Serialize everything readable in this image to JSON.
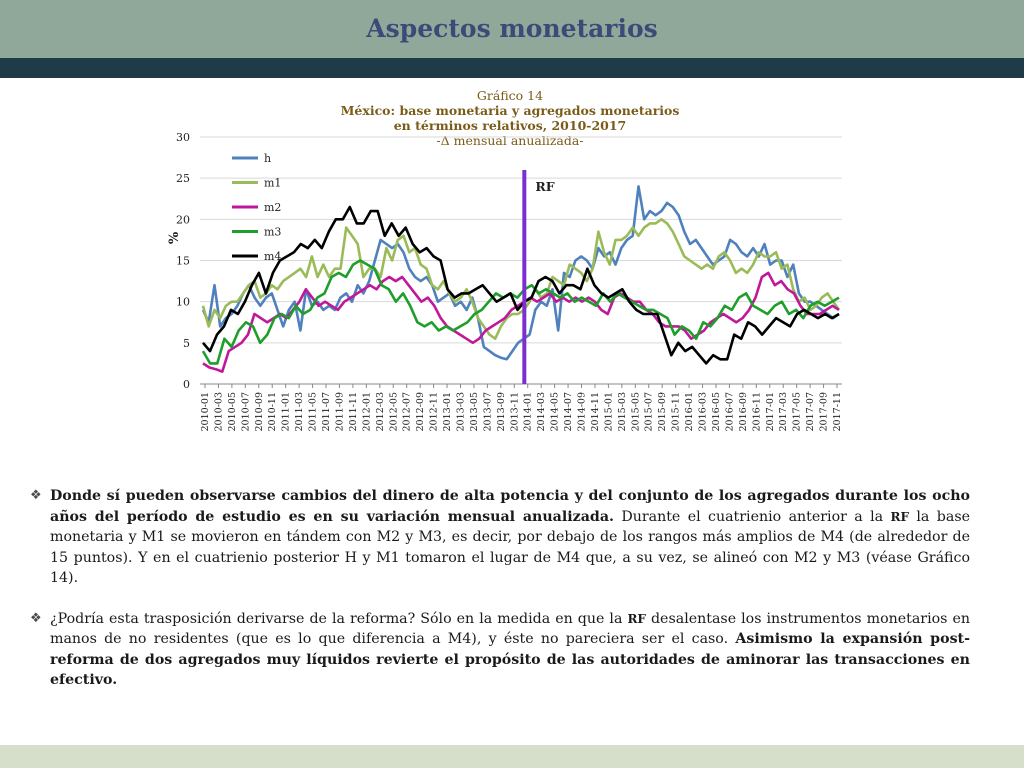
{
  "slide": {
    "title": "Aspectos monetarios"
  },
  "chart_header": {
    "line1": "Gráfico 14",
    "line2": "México: base monetaria y agregados monetarios",
    "line3": "en términos relativos, 2010-2017",
    "line4": "-Δ mensual anualizada-"
  },
  "chart_data": {
    "type": "line",
    "ylabel": "%",
    "ylim": [
      0,
      30
    ],
    "y_ticks": [
      "0",
      "5",
      "10",
      "15",
      "20",
      "25",
      "30"
    ],
    "x_tick_labels": [
      "2010-01",
      "2010-03",
      "2010-05",
      "2010-07",
      "2010-09",
      "2010-11",
      "2011-01",
      "2011-03",
      "2011-05",
      "2011-07",
      "2011-09",
      "2011-11",
      "2012-01",
      "2012-03",
      "2012-05",
      "2012-07",
      "2012-09",
      "2012-11",
      "2013-01",
      "2013-03",
      "2013-05",
      "2013-07",
      "2013-09",
      "2013-11",
      "2014-01",
      "2014-03",
      "2014-05",
      "2014-07",
      "2014-09",
      "2014-11",
      "2015-01",
      "2015-03",
      "2015-05",
      "2015-07",
      "2015-09",
      "2015-11",
      "2016-01",
      "2016-03",
      "2016-05",
      "2016-07",
      "2016-09",
      "2016-11",
      "2017-01",
      "2017-03",
      "2017-05",
      "2017-07",
      "2017-09",
      "2017-11"
    ],
    "annotation": "RF",
    "annotation_index": 48,
    "colors": {
      "h": "#4f81bd",
      "m1": "#9bbb59",
      "m2": "#c0189a",
      "m3": "#1e9e2a",
      "m4": "#000000",
      "rf": "#7b2fd0"
    },
    "series": [
      {
        "name": "h",
        "values": [
          9.0,
          7.5,
          12.0,
          7.0,
          8.0,
          8.5,
          9.5,
          11.0,
          12.0,
          10.5,
          9.5,
          10.5,
          11.0,
          9.0,
          7.0,
          9.0,
          10.0,
          6.5,
          11.5,
          9.5,
          10.0,
          9.0,
          9.5,
          9.0,
          10.5,
          11.0,
          10.0,
          12.0,
          11.0,
          12.5,
          15.0,
          17.5,
          17.0,
          16.5,
          17.0,
          16.0,
          14.0,
          13.0,
          12.5,
          13.0,
          12.0,
          10.0,
          10.5,
          11.0,
          9.5,
          10.0,
          9.0,
          10.5,
          8.0,
          4.5,
          4.0,
          3.5,
          3.2,
          3.0,
          4.0,
          5.0,
          5.5,
          6.0,
          9.0,
          10.0,
          9.5,
          11.5,
          6.5,
          13.5,
          13.0,
          15.0,
          15.5,
          15.0,
          14.0,
          16.5,
          15.5,
          16.0,
          14.5,
          16.5,
          17.5,
          18.0,
          24.0,
          20.0,
          21.0,
          20.5,
          21.0,
          22.0,
          21.5,
          20.5,
          18.5,
          17.0,
          17.5,
          16.5,
          15.5,
          14.5,
          15.0,
          15.5,
          17.5,
          17.0,
          16.0,
          15.5,
          16.5,
          15.5,
          17.0,
          14.5,
          15.0,
          15.0,
          13.0,
          14.5,
          11.0,
          10.0,
          10.0,
          9.5,
          9.0,
          8.5,
          8.0,
          8.5
        ]
      },
      {
        "name": "m1",
        "values": [
          9.5,
          7.0,
          9.0,
          8.0,
          9.5,
          10.0,
          10.0,
          11.0,
          12.0,
          12.5,
          10.5,
          11.0,
          12.0,
          11.5,
          12.5,
          13.0,
          13.5,
          14.0,
          13.0,
          15.5,
          13.0,
          14.5,
          13.0,
          14.0,
          14.0,
          19.0,
          18.0,
          17.0,
          13.0,
          14.0,
          14.0,
          13.0,
          16.5,
          15.0,
          17.5,
          18.0,
          16.0,
          16.5,
          14.5,
          14.0,
          12.0,
          11.5,
          12.5,
          11.0,
          10.0,
          10.5,
          11.5,
          10.0,
          8.0,
          7.0,
          6.0,
          5.5,
          7.0,
          8.0,
          8.5,
          8.5,
          9.0,
          10.0,
          11.5,
          10.5,
          11.0,
          13.0,
          12.5,
          12.0,
          14.5,
          14.0,
          13.5,
          12.5,
          14.0,
          18.5,
          16.0,
          14.5,
          17.5,
          17.5,
          18.0,
          19.0,
          18.0,
          19.0,
          19.5,
          19.5,
          20.0,
          19.5,
          18.5,
          17.0,
          15.5,
          15.0,
          14.5,
          14.0,
          14.5,
          14.0,
          15.5,
          16.0,
          15.0,
          13.5,
          14.0,
          13.5,
          14.5,
          16.0,
          15.5,
          15.5,
          16.0,
          14.0,
          14.5,
          11.5,
          10.0,
          10.5,
          9.0,
          9.5,
          10.5,
          11.0,
          10.0,
          9.0
        ]
      },
      {
        "name": "m2",
        "values": [
          2.5,
          2.0,
          1.8,
          1.5,
          4.0,
          4.5,
          5.0,
          6.0,
          8.5,
          8.0,
          7.5,
          8.0,
          8.5,
          8.0,
          9.0,
          10.0,
          11.5,
          10.5,
          9.5,
          10.0,
          9.5,
          9.0,
          10.0,
          10.5,
          11.0,
          11.5,
          12.0,
          11.5,
          12.5,
          13.0,
          12.5,
          13.0,
          12.0,
          11.0,
          10.0,
          10.5,
          9.5,
          8.0,
          7.0,
          6.5,
          6.0,
          5.5,
          5.0,
          5.5,
          6.5,
          7.0,
          7.5,
          8.0,
          9.0,
          9.5,
          10.0,
          10.5,
          10.0,
          10.5,
          11.0,
          10.0,
          10.5,
          10.0,
          10.5,
          10.0,
          10.5,
          10.0,
          9.0,
          8.5,
          10.5,
          11.0,
          10.5,
          10.0,
          10.0,
          9.0,
          8.5,
          7.5,
          7.0,
          7.0,
          7.0,
          6.5,
          5.5,
          6.0,
          6.5,
          7.5,
          8.0,
          8.5,
          8.0,
          7.5,
          8.0,
          9.0,
          10.5,
          13.0,
          13.5,
          12.0,
          12.5,
          11.5,
          11.0,
          9.5,
          8.5,
          8.5,
          8.5,
          9.0,
          9.5,
          9.0
        ]
      },
      {
        "name": "m3",
        "values": [
          4.0,
          2.5,
          2.5,
          5.5,
          4.5,
          6.5,
          7.5,
          7.0,
          5.0,
          6.0,
          8.0,
          8.5,
          8.0,
          9.5,
          8.5,
          9.0,
          10.5,
          11.0,
          13.0,
          13.5,
          13.0,
          14.5,
          15.0,
          14.5,
          14.0,
          12.0,
          11.5,
          10.0,
          11.0,
          9.5,
          7.5,
          7.0,
          7.5,
          6.5,
          7.0,
          6.5,
          7.0,
          7.5,
          8.5,
          9.0,
          10.0,
          11.0,
          10.5,
          11.0,
          10.5,
          11.5,
          12.0,
          11.0,
          11.5,
          11.0,
          10.5,
          11.0,
          10.0,
          10.5,
          10.0,
          9.5,
          11.0,
          10.0,
          11.0,
          10.5,
          10.0,
          9.5,
          9.0,
          9.0,
          8.5,
          8.0,
          6.0,
          7.0,
          6.5,
          5.5,
          7.5,
          7.0,
          8.0,
          9.5,
          9.0,
          10.5,
          11.0,
          9.5,
          9.0,
          8.5,
          9.5,
          10.0,
          8.5,
          9.0,
          8.0,
          9.5,
          10.0,
          9.5,
          10.0,
          10.5
        ]
      },
      {
        "name": "m4",
        "values": [
          5.0,
          4.0,
          6.0,
          7.0,
          9.0,
          8.5,
          10.0,
          12.0,
          13.5,
          11.0,
          13.5,
          15.0,
          15.5,
          16.0,
          17.0,
          16.5,
          17.5,
          16.5,
          18.5,
          20.0,
          20.0,
          21.5,
          19.5,
          19.5,
          21.0,
          21.0,
          18.0,
          19.5,
          18.0,
          19.0,
          17.0,
          16.0,
          16.5,
          15.5,
          15.0,
          11.5,
          10.5,
          11.0,
          11.0,
          11.5,
          12.0,
          11.0,
          10.0,
          10.5,
          11.0,
          9.0,
          10.0,
          10.5,
          12.5,
          13.0,
          12.5,
          11.0,
          12.0,
          12.0,
          11.5,
          14.0,
          12.0,
          11.0,
          10.5,
          11.0,
          11.5,
          10.0,
          9.0,
          8.5,
          8.5,
          8.5,
          6.0,
          3.5,
          5.0,
          4.0,
          4.5,
          3.5,
          2.5,
          3.5,
          3.0,
          3.0,
          6.0,
          5.5,
          7.5,
          7.0,
          6.0,
          7.0,
          8.0,
          7.5,
          7.0,
          8.5,
          9.0,
          8.5,
          8.0,
          8.5,
          8.0,
          8.5
        ]
      }
    ],
    "legend": [
      "h",
      "m1",
      "m2",
      "m3",
      "m4"
    ],
    "legend_position": "top-left"
  },
  "text": {
    "p1_bold": "Donde sí pueden observarse cambios del dinero de alta potencia y del conjunto de los agregados durante los ocho años del período de estudio es en su variación mensual anualizada.",
    "p1_a": " Durante el cuatrienio anterior a la ",
    "p1_rf": "RF",
    "p1_b": " la base monetaria y M1 se movieron en tándem con M2 y M3, es decir, por debajo de los rangos más amplios de M4 (de alrededor de 15 puntos). Y en el cuatrienio posterior H y M1 tomaron el lugar de M4 que, a su vez, se alineó con M2 y M3 (véase Gráfico 14).",
    "p2_a": "¿Podría esta trasposición derivarse de la reforma? Sólo en la medida en que la ",
    "p2_rf": "RF",
    "p2_b": " desalentase los instrumentos monetarios en manos de no residentes (que es lo que diferencia a M4), y éste no pareciera ser el caso. ",
    "p2_bold": "Asimismo la expansión post-reforma de dos agregados muy líquidos revierte el propósito de las autoridades de aminorar las transacciones en efectivo."
  }
}
